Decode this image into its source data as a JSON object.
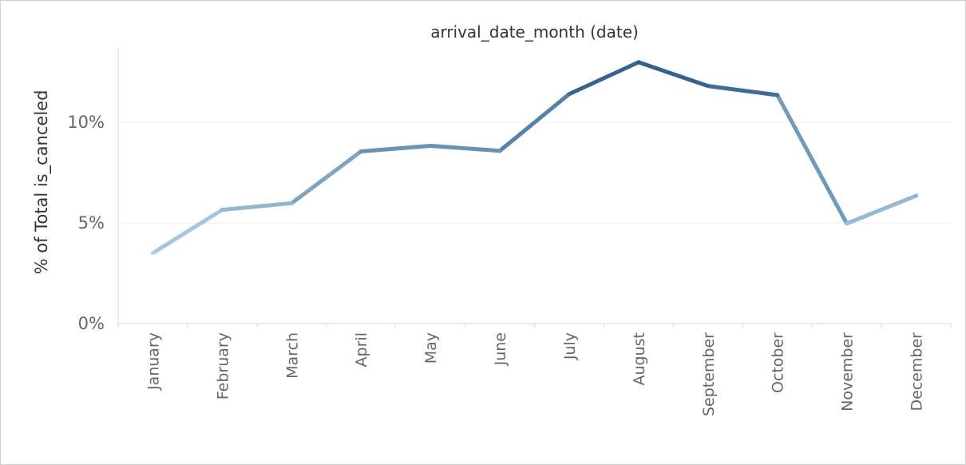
{
  "chart_data": {
    "type": "line",
    "title": "arrival_date_month (date)",
    "xlabel": "",
    "ylabel": "% of Total is_canceled",
    "categories": [
      "January",
      "February",
      "March",
      "April",
      "May",
      "June",
      "July",
      "August",
      "September",
      "October",
      "November",
      "December"
    ],
    "values": [
      3.5,
      5.65,
      5.98,
      8.55,
      8.83,
      8.58,
      11.4,
      12.98,
      11.8,
      11.35,
      4.97,
      6.35
    ],
    "y_ticks": [
      {
        "value": 0,
        "label": "0%"
      },
      {
        "value": 5,
        "label": "5%"
      },
      {
        "value": 10,
        "label": "10%"
      }
    ],
    "ylim": [
      0,
      14
    ],
    "grid": "horizontal",
    "colors": {
      "line_low": "#b3d5ea",
      "line_high": "#2c5a86",
      "grid": "#ececec",
      "axis": "#d9d9d9"
    }
  }
}
